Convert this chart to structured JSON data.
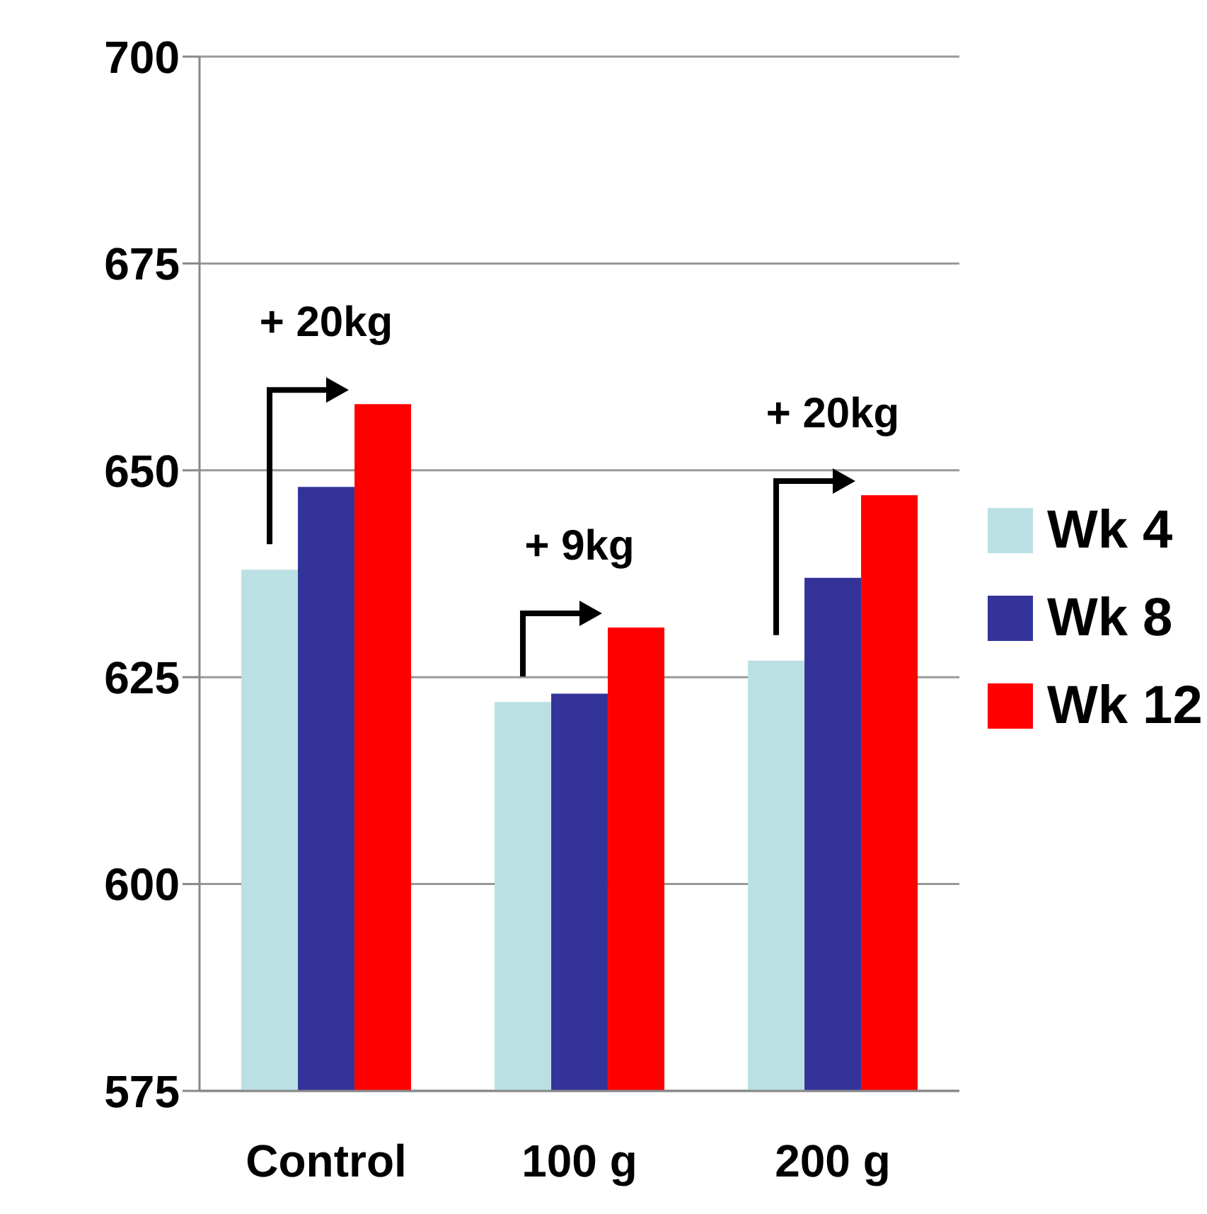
{
  "chart_data": {
    "type": "bar",
    "categories": [
      "Control",
      "100 g",
      "200 g"
    ],
    "series": [
      {
        "name": "Wk 4",
        "color": "#bbe0e3",
        "values": [
          638,
          622,
          627
        ]
      },
      {
        "name": "Wk 8",
        "color": "#333399",
        "values": [
          648,
          623,
          637
        ]
      },
      {
        "name": "Wk 12",
        "color": "#ff0000",
        "values": [
          658,
          631,
          647
        ]
      }
    ],
    "ylim": [
      575,
      700
    ],
    "yticks": [
      575,
      600,
      625,
      650,
      675,
      700
    ],
    "grid": "y",
    "legend": "right",
    "annotations": [
      "+ 20kg",
      "+ 9kg",
      "+ 20kg"
    ]
  }
}
